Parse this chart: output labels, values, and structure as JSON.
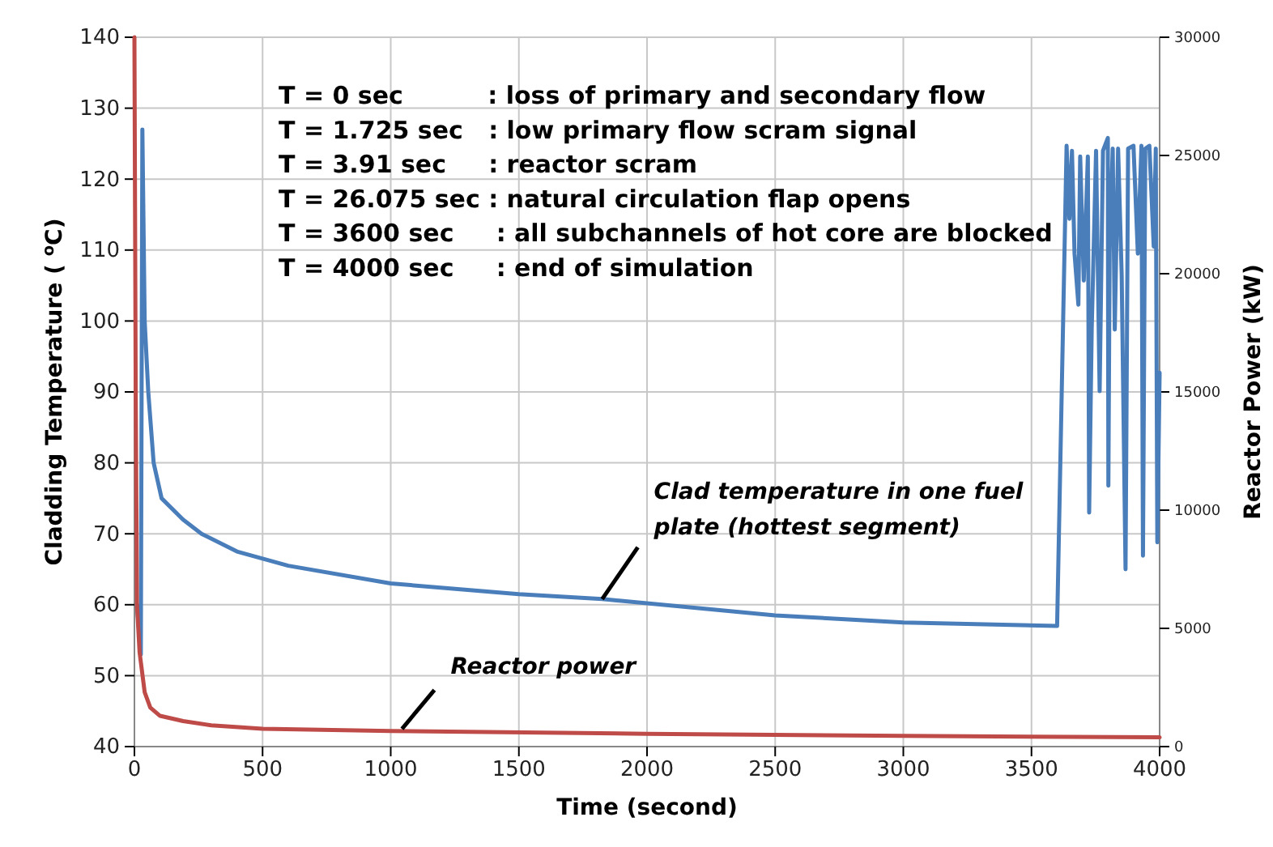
{
  "chart_data": {
    "type": "line",
    "xlabel": "Time (second)",
    "ylabel": "Cladding Temperature ( $^{o}$C)",
    "y2label": "Reactor Power (kW)",
    "xlim": [
      0,
      4000
    ],
    "xticks": [
      0,
      500,
      1000,
      1500,
      2000,
      2500,
      3000,
      3500,
      4000
    ],
    "ylim": [
      40,
      140
    ],
    "yticks": [
      40,
      50,
      60,
      70,
      80,
      90,
      100,
      110,
      120,
      130,
      140
    ],
    "y2lim": [
      0,
      30000
    ],
    "y2ticks": [
      0,
      5000,
      10000,
      15000,
      20000,
      25000,
      30000
    ],
    "grid": true,
    "marker": "none",
    "line_style": "solid",
    "series": [
      {
        "color": "#4a7ebb",
        "x": [
          10,
          25,
          31,
          40,
          54,
          75,
          106,
          190,
          262,
          400,
          600,
          1000,
          1500,
          1825,
          2500,
          3000,
          3600,
          3637,
          3648,
          3658,
          3668,
          3683,
          3690,
          3704,
          3720,
          3725,
          3735,
          3752,
          3766,
          3779,
          3798,
          3800,
          3805,
          3817,
          3825,
          3838,
          3852,
          3867,
          3877,
          3898,
          3915,
          3929,
          3935,
          3944,
          3960,
          3977,
          3985,
          3991,
          4000
        ],
        "values": [
          60,
          53,
          127,
          100,
          90,
          80,
          75,
          72,
          70,
          67.5,
          65.5,
          63,
          61.5,
          60.8,
          58.5,
          57.5,
          57,
          124.7,
          114.4,
          124,
          109.5,
          102.3,
          123.2,
          105.7,
          123.2,
          73,
          98.8,
          124,
          90.1,
          124,
          125.8,
          76.8,
          110,
          124.3,
          98.8,
          124.3,
          106.4,
          65,
          124.3,
          124.7,
          109.5,
          124.7,
          66.9,
          124.3,
          124.7,
          110.5,
          124.3,
          68.8,
          92.7
        ]
      },
      {
        "color": "#be4b48",
        "axis": "y2",
        "x": [
          0,
          5,
          10,
          20,
          40,
          62,
          100,
          190,
          300,
          500,
          1000,
          2000,
          3000,
          4000
        ],
        "values": [
          30000,
          15000,
          6000,
          4000,
          2300,
          1650,
          1300,
          1080,
          900,
          750,
          660,
          540,
          450,
          390
        ]
      }
    ],
    "annotations": [
      "T = 0 sec          : loss of primary and secondary flow",
      "T = 1.725 sec   : low primary flow scram signal",
      "T = 3.91 sec     : reactor scram",
      "T = 26.075 sec : natural circulation flap opens",
      "T = 3600 sec     : all subchannels of hot core are blocked",
      "T = 4000 sec     : end of simulation",
      {
        "text": "Clad temperature in one fuel plate (hottest segment)",
        "x": 1825,
        "y": 60.8
      },
      {
        "text": "Reactor power",
        "x": 1044,
        "y": 42.5
      }
    ]
  }
}
